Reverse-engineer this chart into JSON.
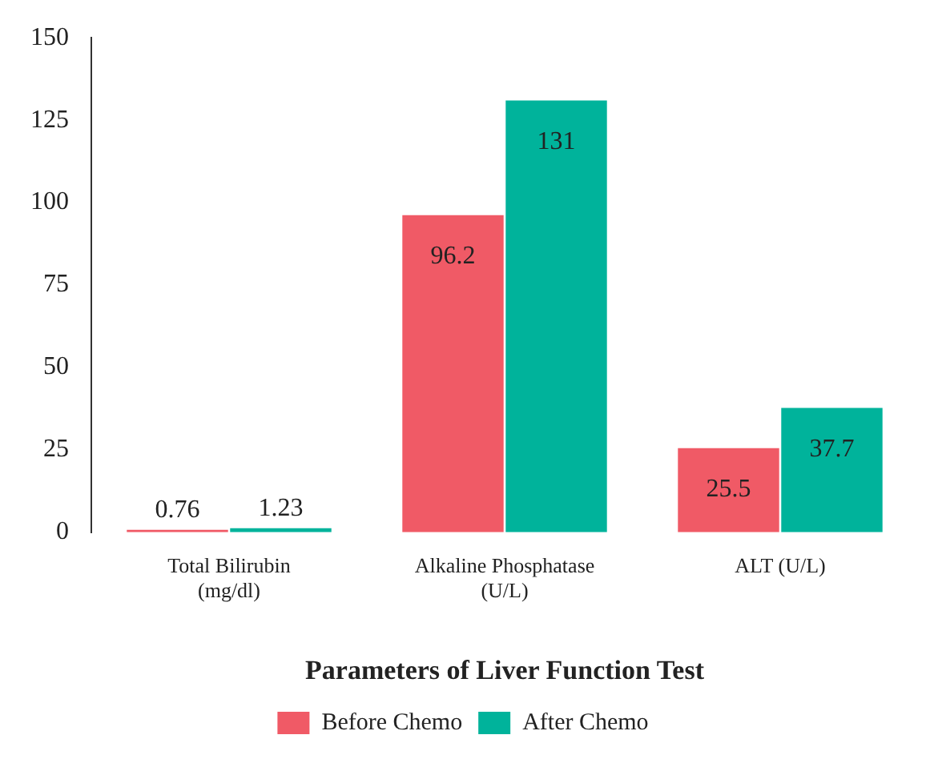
{
  "chart_data": {
    "type": "bar",
    "xlabel": "Parameters of Liver Function Test",
    "categories": [
      "Total Bilirubin\n(mg/dl)",
      "Alkaline Phosphatase\n(U/L)",
      "ALT (U/L)"
    ],
    "series": [
      {
        "name": "Before Chemo",
        "color": "#f05a66",
        "values": [
          0.76,
          96.2,
          25.5
        ]
      },
      {
        "name": "After Chemo",
        "color": "#00b39b",
        "values": [
          1.23,
          131,
          37.7
        ]
      }
    ],
    "ylim": [
      0,
      150
    ],
    "yticks": [
      0,
      25,
      50,
      75,
      100,
      125,
      150
    ],
    "grid": false,
    "legend": "bottom",
    "data_labels": true
  }
}
